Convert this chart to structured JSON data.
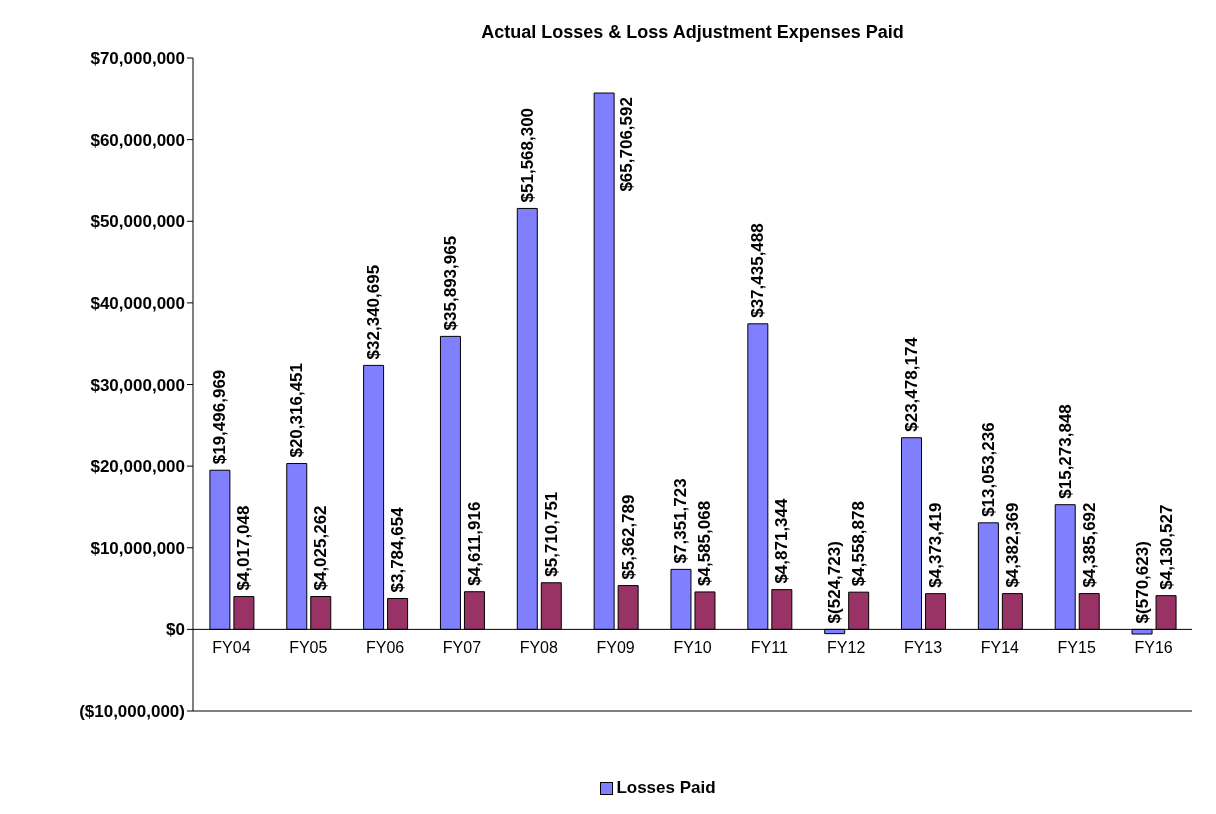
{
  "chart_data": {
    "type": "bar",
    "title": "Actual Losses & Loss Adjustment Expenses Paid",
    "categories": [
      "FY04",
      "FY05",
      "FY06",
      "FY07",
      "FY08",
      "FY09",
      "FY10",
      "FY11",
      "FY12",
      "FY13",
      "FY14",
      "FY15",
      "FY16"
    ],
    "series": [
      {
        "name": "Losses Paid",
        "color": "#8080ff",
        "values": [
          19496969,
          20316451,
          32340695,
          35893965,
          51568300,
          65706592,
          7351723,
          37435488,
          -524723,
          23478174,
          13053236,
          15273848,
          -570623
        ],
        "value_labels": [
          "$19,496,969",
          "$20,316,451",
          "$32,340,695",
          "$35,893,965",
          "$51,568,300",
          "$65,706,592",
          "$7,351,723",
          "$37,435,488",
          "$(524,723)",
          "$23,478,174",
          "$13,053,236",
          "$15,273,848",
          "$(570,623)"
        ]
      },
      {
        "color": "#993366",
        "values": [
          4017048,
          4025262,
          3784654,
          4611916,
          5710751,
          5362789,
          4585068,
          4871344,
          4558878,
          4373419,
          4382369,
          4385692,
          4130527
        ],
        "value_labels": [
          "$4,017,048",
          "$4,025,262",
          "$3,784,654",
          "$4,611,916",
          "$5,710,751",
          "$5,362,789",
          "$4,585,068",
          "$4,871,344",
          "$4,558,878",
          "$4,373,419",
          "$4,382,369",
          "$4,385,692",
          "$4,130,527"
        ]
      }
    ],
    "ylim": [
      -10000000,
      70000000
    ],
    "yticks": [
      {
        "value": -10000000,
        "label": "($10,000,000)"
      },
      {
        "value": 0,
        "label": "$0"
      },
      {
        "value": 10000000,
        "label": "$10,000,000"
      },
      {
        "value": 20000000,
        "label": "$20,000,000"
      },
      {
        "value": 30000000,
        "label": "$30,000,000"
      },
      {
        "value": 40000000,
        "label": "$40,000,000"
      },
      {
        "value": 50000000,
        "label": "$50,000,000"
      },
      {
        "value": 60000000,
        "label": "$60,000,000"
      },
      {
        "value": 70000000,
        "label": "$70,000,000"
      }
    ],
    "grid": false,
    "legend": "bottom"
  }
}
